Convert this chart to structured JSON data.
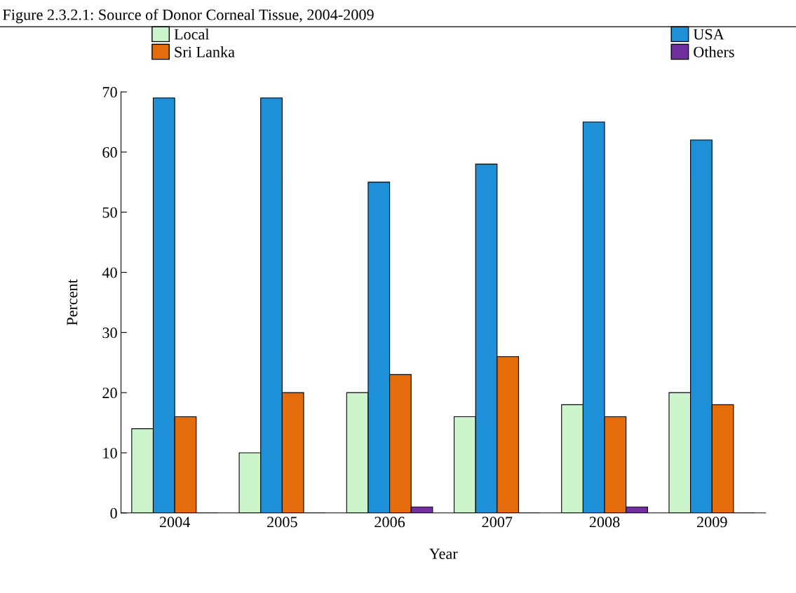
{
  "chart_data": {
    "type": "bar",
    "title": "Figure 2.3.2.1: Source of Donor Corneal Tissue, 2004-2009",
    "xlabel": "Year",
    "ylabel": "Percent",
    "categories": [
      "2004",
      "2005",
      "2006",
      "2007",
      "2008",
      "2009"
    ],
    "series": [
      {
        "name": "Local",
        "color": "#ccf5cc",
        "values": [
          14,
          10,
          20,
          16,
          18,
          20
        ]
      },
      {
        "name": "USA",
        "color": "#1e90d8",
        "values": [
          69,
          69,
          55,
          58,
          65,
          62
        ]
      },
      {
        "name": "Sri Lanka",
        "color": "#e46c0a",
        "values": [
          16,
          20,
          23,
          26,
          16,
          18
        ]
      },
      {
        "name": "Others",
        "color": "#7030a0",
        "values": [
          0,
          0,
          1,
          0,
          1,
          0
        ]
      }
    ],
    "ylim": [
      0,
      70
    ],
    "yticks": [
      0,
      10,
      20,
      30,
      40,
      50,
      60,
      70
    ],
    "grid": false,
    "legend": "top"
  }
}
